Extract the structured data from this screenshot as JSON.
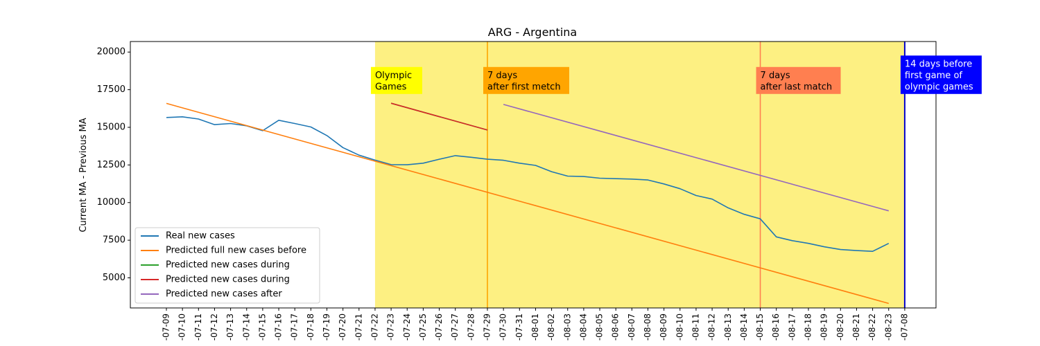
{
  "chart_data": {
    "type": "line",
    "title": "ARG - Argentina",
    "xlabel": "",
    "ylabel": "Current MA - Previous MA",
    "ylim": [
      3000,
      20700
    ],
    "yticks": [
      5000,
      7500,
      10000,
      12500,
      15000,
      17500,
      20000
    ],
    "grid": false,
    "legend_position": "lower-left",
    "x": [
      "-07-09",
      "-07-10",
      "-07-11",
      "-07-12",
      "-07-13",
      "-07-14",
      "-07-15",
      "-07-16",
      "-07-17",
      "-07-18",
      "-07-19",
      "-07-20",
      "-07-21",
      "-07-22",
      "-07-23",
      "-07-24",
      "-07-25",
      "-07-26",
      "-07-27",
      "-07-28",
      "-07-29",
      "-07-30",
      "-07-31",
      "-08-01",
      "-08-02",
      "-08-03",
      "-08-04",
      "-08-05",
      "-08-06",
      "-08-07",
      "-08-08",
      "-08-09",
      "-08-10",
      "-08-11",
      "-08-12",
      "-08-13",
      "-08-14",
      "-08-15",
      "-08-16",
      "-08-17",
      "-08-18",
      "-08-19",
      "-08-20",
      "-08-21",
      "-08-22",
      "-08-23",
      "-07-08"
    ],
    "shaded_region": {
      "from": "-07-22",
      "to": "-07-08",
      "color": "#fdf082"
    },
    "vlines": [
      {
        "x": "-07-29",
        "color": "#ffa500"
      },
      {
        "x": "-08-15",
        "color": "#ff7f50"
      },
      {
        "x": "-07-08",
        "color": "#0000cc"
      }
    ],
    "annotations": [
      {
        "text": [
          "Olympic",
          "Games"
        ],
        "x": "-07-22",
        "y": 17400,
        "bg": "#ffff00",
        "fg": "#000000"
      },
      {
        "text": [
          "7 days",
          "after first metch"
        ],
        "x": "-07-29",
        "y": 17400,
        "bg": "#ffa500",
        "fg": "#000000"
      },
      {
        "text": [
          "7 days",
          "after last match"
        ],
        "x": "-08-15",
        "y": 17400,
        "bg": "#ff7f50",
        "fg": "#000000"
      },
      {
        "text": [
          "14 days before",
          "first game of",
          "olympic games"
        ],
        "x": "-07-08",
        "y": 17400,
        "bg": "#0000ff",
        "fg": "#ffffff"
      }
    ],
    "series": [
      {
        "name": "Real new cases",
        "color": "#1f77b4",
        "x": [
          "-07-09",
          "-07-10",
          "-07-11",
          "-07-12",
          "-07-13",
          "-07-14",
          "-07-15",
          "-07-16",
          "-07-17",
          "-07-18",
          "-07-19",
          "-07-20",
          "-07-21",
          "-07-22",
          "-07-23",
          "-07-24",
          "-07-25",
          "-07-26",
          "-07-27",
          "-07-28",
          "-07-29",
          "-07-30",
          "-07-31",
          "-08-01",
          "-08-02",
          "-08-03",
          "-08-04",
          "-08-05",
          "-08-06",
          "-08-07",
          "-08-08",
          "-08-09",
          "-08-10",
          "-08-11",
          "-08-12",
          "-08-13",
          "-08-14",
          "-08-15",
          "-08-16",
          "-08-17",
          "-08-18",
          "-08-19",
          "-08-20",
          "-08-21",
          "-08-22",
          "-08-23"
        ],
        "values": [
          15650,
          15700,
          15550,
          15180,
          15250,
          15100,
          14780,
          15470,
          15250,
          15020,
          14450,
          13650,
          13150,
          12820,
          12520,
          12510,
          12620,
          12880,
          13120,
          13010,
          12880,
          12810,
          12620,
          12470,
          12050,
          11760,
          11730,
          11620,
          11590,
          11560,
          11500,
          11240,
          10920,
          10470,
          10230,
          9650,
          9220,
          8920,
          7720,
          7470,
          7290,
          7060,
          6880,
          6810,
          6760,
          7290
        ]
      },
      {
        "name": "Predicted full new cases before",
        "color": "#ff7f0e",
        "x": [
          "-07-09",
          "-08-23"
        ],
        "values": [
          16590,
          3300
        ]
      },
      {
        "name": "Predicted new cases during",
        "color": "#2ca02c",
        "x": [
          "-07-23",
          "-07-29"
        ],
        "values": [
          16600,
          14820
        ]
      },
      {
        "name": "Predicted new cases during",
        "color": "#d62728",
        "x": [
          "-07-23",
          "-07-29"
        ],
        "values": [
          16600,
          14820
        ]
      },
      {
        "name": "Predicted new cases after",
        "color": "#9467bd",
        "x": [
          "-07-30",
          "-08-23"
        ],
        "values": [
          16520,
          9450
        ]
      }
    ]
  }
}
